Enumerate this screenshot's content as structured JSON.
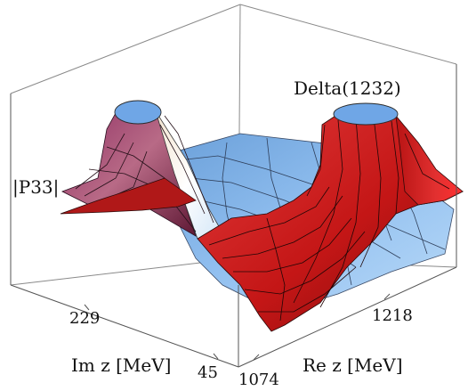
{
  "chart_data": {
    "type": "surface3d",
    "title": "",
    "zlabel": "|P33|",
    "xlabel": "Re z [MeV]",
    "ylabel": "Im z [MeV]",
    "x_ticks": [
      "1074",
      "1218"
    ],
    "y_ticks": [
      "229",
      "45"
    ],
    "annotations": [
      {
        "text": "Delta(1232)"
      }
    ],
    "colors": {
      "surface_physical": "#cc1f1f",
      "surface_second": "#7aaee6",
      "surface_left": "#8a2a5a",
      "pole_cap": "#6fa6e6",
      "box_edge": "#7a7a7a"
    }
  }
}
